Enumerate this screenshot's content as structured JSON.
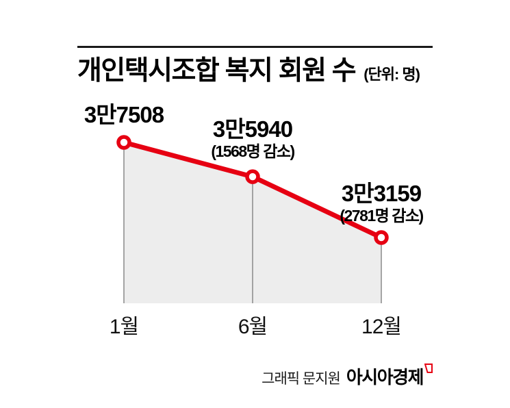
{
  "header": {
    "title": "개인택시조합 복지 회원 수",
    "unit": "(단위: 명)"
  },
  "chart_data": {
    "type": "line",
    "title": "개인택시조합 복지 회원 수",
    "unit_label": "(단위: 명)",
    "categories": [
      "1월",
      "6월",
      "12월"
    ],
    "values": [
      37508,
      35940,
      33159
    ],
    "point_labels": [
      "3만7508",
      "3만5940",
      "3만3159"
    ],
    "point_sublabels": [
      "",
      "(1568명 감소)",
      "(2781명 감소)"
    ],
    "deltas": [
      null,
      -1568,
      -2781
    ],
    "marker": "open-circle",
    "line_color": "#e60012",
    "area_color": "#ededed",
    "guide_color": "#8f8f8f",
    "grid": "off",
    "legend": "none",
    "xlabel": "",
    "ylabel": ""
  },
  "footer": {
    "credit": "그래픽 문지원",
    "brand": "아시아경제"
  },
  "colors": {
    "accent_red": "#e60012",
    "rule_black": "#1a1a1a",
    "text_black": "#000000"
  }
}
